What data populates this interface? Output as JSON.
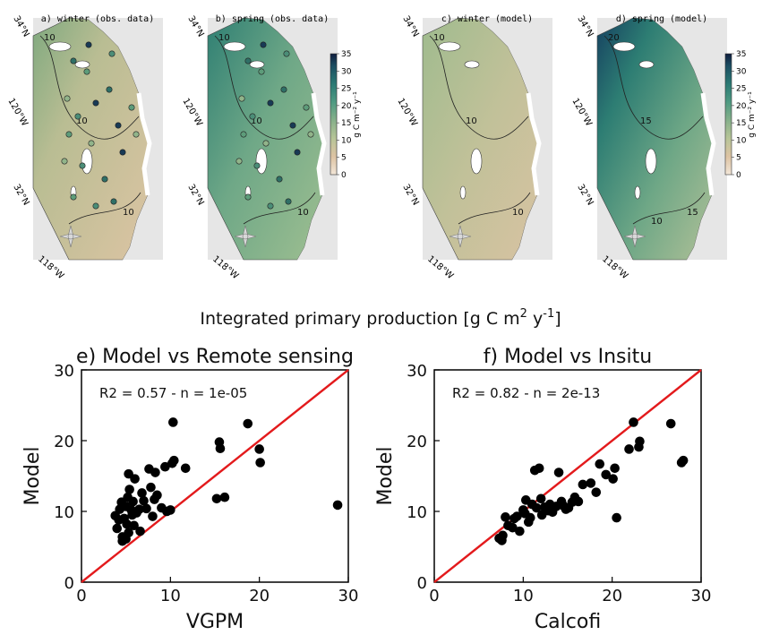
{
  "maps": {
    "panels": [
      {
        "title": "a) winter (obs. data)",
        "lat_top": "34°N",
        "lat_mid": "32°N",
        "lon_mid": "120°W",
        "lon_bot": "118°W",
        "contours": [
          "10",
          "10",
          "10"
        ],
        "theme": "obs-winter"
      },
      {
        "title": "b) spring (obs. data)",
        "lat_top": "34°N",
        "lat_mid": "32°N",
        "lon_mid": "120°W",
        "lon_bot": "118°W",
        "contours": [
          "10",
          "10",
          "10"
        ],
        "theme": "obs-spring"
      },
      {
        "title": "c) winter (model)",
        "lat_top": "34°N",
        "lat_mid": "32°N",
        "lon_mid": "120°W",
        "lon_bot": "118°W",
        "contours": [
          "10",
          "10",
          "10"
        ],
        "theme": "model-winter"
      },
      {
        "title": "d) spring (model)",
        "lat_top": "34°N",
        "lat_mid": "32°N",
        "lon_mid": "120°W",
        "lon_bot": "118°W",
        "contours": [
          "20",
          "15",
          "15",
          "10"
        ],
        "theme": "model-spring"
      }
    ],
    "colorbar": {
      "ticks": [
        "35",
        "30",
        "25",
        "20",
        "15",
        "10",
        "5",
        "0"
      ],
      "label": "g C m⁻² y⁻¹"
    },
    "colors": {
      "low": "#e2c6a8",
      "mid": "#9fbf91",
      "high": "#1f6f6a",
      "max": "#0d2b4d",
      "land": "#e6e6e6",
      "coast": "#ffffff"
    }
  },
  "main_title": {
    "text": "Integrated primary production [g C m",
    "sup1": "2",
    "mid": " y",
    "sup2": "-1",
    "end": "]"
  },
  "chart_data": [
    {
      "type": "scatter",
      "title": "e) Model vs Remote sensing",
      "xlabel": "VGPM",
      "ylabel": "Model",
      "xlim": [
        0,
        30
      ],
      "ylim": [
        0,
        30
      ],
      "xticks": [
        "0",
        "10",
        "20",
        "30"
      ],
      "yticks": [
        "0",
        "10",
        "20",
        "30"
      ],
      "annotation": "R2 = 0.57 - n = 1e-05",
      "reference_line": "1:1",
      "line_color": "#e31a1c",
      "point_color": "#000000",
      "points": [
        [
          3.8,
          9.4
        ],
        [
          4.0,
          7.6
        ],
        [
          4.2,
          8.8
        ],
        [
          4.3,
          10.3
        ],
        [
          4.5,
          11.3
        ],
        [
          4.6,
          6.4
        ],
        [
          4.8,
          9.0
        ],
        [
          5.0,
          10.7
        ],
        [
          5.1,
          8.2
        ],
        [
          5.2,
          12.0
        ],
        [
          5.3,
          7.0
        ],
        [
          5.3,
          15.3
        ],
        [
          5.4,
          13.1
        ],
        [
          5.6,
          10.2
        ],
        [
          5.7,
          9.5
        ],
        [
          5.8,
          11.4
        ],
        [
          5.9,
          8.0
        ],
        [
          6.0,
          14.6
        ],
        [
          4.6,
          5.8
        ],
        [
          5.0,
          6.1
        ],
        [
          6.2,
          9.8
        ],
        [
          6.5,
          10.3
        ],
        [
          6.6,
          7.2
        ],
        [
          6.8,
          12.6
        ],
        [
          7.0,
          11.5
        ],
        [
          7.3,
          10.4
        ],
        [
          7.6,
          16.0
        ],
        [
          7.8,
          13.4
        ],
        [
          8.0,
          9.3
        ],
        [
          8.2,
          11.7
        ],
        [
          8.3,
          15.5
        ],
        [
          8.5,
          12.3
        ],
        [
          9.0,
          10.5
        ],
        [
          9.4,
          16.3
        ],
        [
          9.6,
          10.0
        ],
        [
          10.0,
          10.2
        ],
        [
          10.2,
          16.8
        ],
        [
          10.3,
          22.6
        ],
        [
          10.4,
          17.2
        ],
        [
          11.7,
          16.1
        ],
        [
          15.2,
          11.8
        ],
        [
          15.5,
          19.8
        ],
        [
          15.6,
          18.9
        ],
        [
          16.1,
          12.0
        ],
        [
          18.7,
          22.4
        ],
        [
          20.0,
          18.8
        ],
        [
          20.1,
          16.9
        ],
        [
          28.8,
          10.9
        ]
      ]
    },
    {
      "type": "scatter",
      "title": "f) Model vs Insitu",
      "xlabel": "Calcofi",
      "ylabel": "Model",
      "xlim": [
        0,
        30
      ],
      "ylim": [
        0,
        30
      ],
      "xticks": [
        "0",
        "10",
        "20",
        "30"
      ],
      "yticks": [
        "0",
        "10",
        "20",
        "30"
      ],
      "annotation": "R2 = 0.82 - n = 2e-13",
      "reference_line": "1:1",
      "line_color": "#e31a1c",
      "point_color": "#000000",
      "points": [
        [
          7.3,
          6.2
        ],
        [
          7.6,
          5.9
        ],
        [
          7.7,
          6.6
        ],
        [
          8.0,
          9.2
        ],
        [
          8.3,
          8.0
        ],
        [
          8.8,
          7.7
        ],
        [
          9.0,
          9.0
        ],
        [
          9.3,
          9.3
        ],
        [
          9.6,
          7.2
        ],
        [
          10.0,
          10.2
        ],
        [
          10.2,
          9.7
        ],
        [
          10.3,
          11.6
        ],
        [
          10.6,
          8.5
        ],
        [
          10.8,
          9.1
        ],
        [
          11.0,
          11.0
        ],
        [
          11.3,
          15.8
        ],
        [
          11.5,
          10.5
        ],
        [
          11.8,
          16.1
        ],
        [
          12.0,
          11.8
        ],
        [
          12.1,
          9.5
        ],
        [
          12.4,
          10.6
        ],
        [
          12.8,
          10.1
        ],
        [
          13.0,
          11.0
        ],
        [
          13.3,
          9.9
        ],
        [
          13.7,
          10.7
        ],
        [
          14.0,
          15.5
        ],
        [
          14.3,
          11.4
        ],
        [
          14.5,
          10.8
        ],
        [
          14.8,
          10.3
        ],
        [
          15.1,
          10.5
        ],
        [
          15.5,
          11.3
        ],
        [
          15.8,
          12.0
        ],
        [
          16.2,
          11.4
        ],
        [
          16.7,
          13.8
        ],
        [
          17.6,
          14.0
        ],
        [
          18.2,
          12.7
        ],
        [
          18.6,
          16.7
        ],
        [
          19.3,
          15.2
        ],
        [
          20.1,
          14.6
        ],
        [
          20.3,
          16.1
        ],
        [
          20.5,
          9.1
        ],
        [
          21.9,
          18.8
        ],
        [
          22.4,
          22.6
        ],
        [
          23.0,
          19.1
        ],
        [
          23.1,
          19.9
        ],
        [
          26.6,
          22.4
        ],
        [
          27.8,
          16.9
        ],
        [
          28.0,
          17.2
        ]
      ]
    }
  ]
}
